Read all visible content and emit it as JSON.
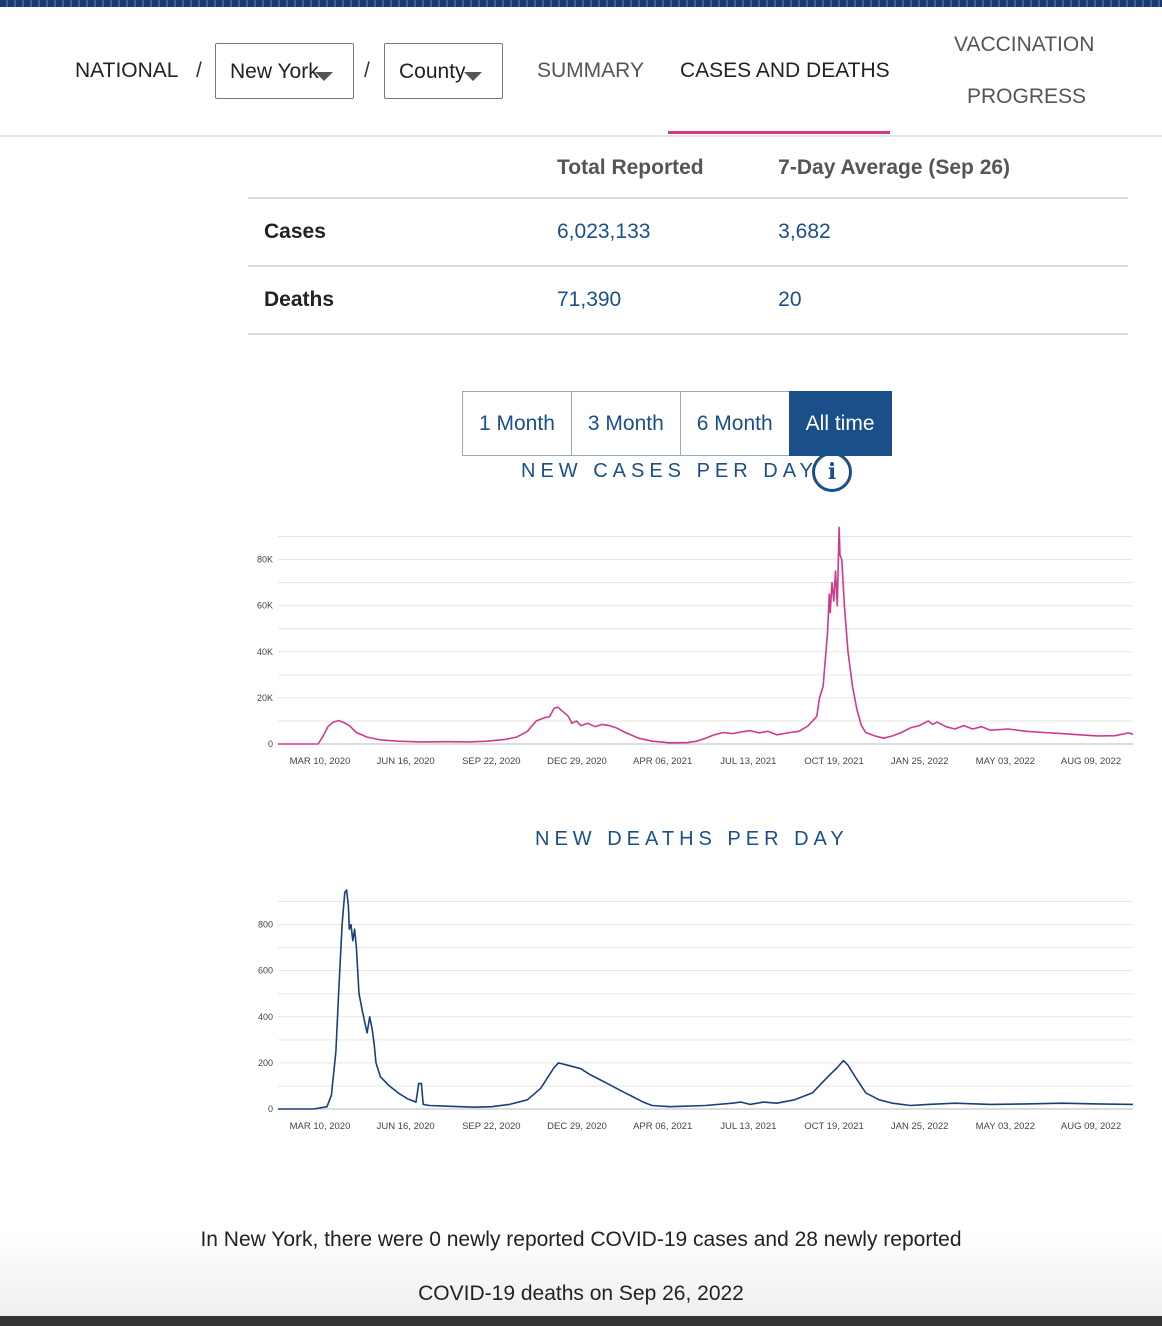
{
  "nav": {
    "national": "NATIONAL",
    "separator": "/",
    "state_select": "New York",
    "county_select": "County",
    "links": [
      "SUMMARY",
      "CASES AND DEATHS",
      "VACCINATION",
      "PROGRESS"
    ]
  },
  "summary": {
    "headers": [
      "Total Reported",
      "7-Day Average (Sep 26)"
    ],
    "rows": [
      {
        "label": "Cases",
        "total": "6,023,133",
        "avg": "3,682"
      },
      {
        "label": "Deaths",
        "total": "71,390",
        "avg": "20"
      }
    ]
  },
  "range_buttons": [
    "1 Month",
    "3 Month",
    "6 Month",
    "All time"
  ],
  "charts": {
    "cases_title": "NEW CASES PER DAY",
    "deaths_title": "NEW DEATHS PER DAY",
    "info_glyph": "i"
  },
  "footnote": {
    "line1": "In New York, there were 0 newly reported COVID-19 cases and 28 newly reported",
    "line2": "COVID-19 deaths on Sep 26, 2022"
  },
  "colors": {
    "cases": "#cf3a8c",
    "deaths": "#1b3f7a",
    "accent": "#1b4f8a"
  },
  "chart_data": [
    {
      "type": "line",
      "title": "NEW CASES PER DAY",
      "xlabel": "",
      "ylabel": "",
      "x_ticks": [
        "MAR 10, 2020",
        "JUN 16, 2020",
        "SEP 22, 2020",
        "DEC 29, 2020",
        "APR 06, 2021",
        "JUL 13, 2021",
        "OCT 19, 2021",
        "JAN 25, 2022",
        "MAY 03, 2022",
        "AUG 09, 2022"
      ],
      "y_ticks": [
        "0",
        "20K",
        "40K",
        "60K",
        "80K"
      ],
      "ylim": [
        0,
        95000
      ],
      "xlim_days": [
        0,
        960
      ],
      "series": [
        {
          "name": "New cases",
          "points": [
            [
              0,
              0
            ],
            [
              20,
              0
            ],
            [
              45,
              0
            ],
            [
              50,
              3000
            ],
            [
              56,
              7500
            ],
            [
              62,
              9500
            ],
            [
              68,
              10200
            ],
            [
              74,
              9300
            ],
            [
              80,
              8000
            ],
            [
              88,
              5000
            ],
            [
              100,
              3000
            ],
            [
              115,
              1800
            ],
            [
              135,
              1200
            ],
            [
              160,
              900
            ],
            [
              190,
              1000
            ],
            [
              215,
              900
            ],
            [
              235,
              1200
            ],
            [
              255,
              2000
            ],
            [
              268,
              3000
            ],
            [
              280,
              5500
            ],
            [
              290,
              10000
            ],
            [
              300,
              11500
            ],
            [
              305,
              11800
            ],
            [
              310,
              15500
            ],
            [
              314,
              16000
            ],
            [
              320,
              14000
            ],
            [
              326,
              12000
            ],
            [
              330,
              9000
            ],
            [
              335,
              10000
            ],
            [
              340,
              8000
            ],
            [
              348,
              9000
            ],
            [
              356,
              7500
            ],
            [
              364,
              8500
            ],
            [
              372,
              8000
            ],
            [
              380,
              7000
            ],
            [
              390,
              5000
            ],
            [
              405,
              2500
            ],
            [
              420,
              1200
            ],
            [
              440,
              500
            ],
            [
              460,
              600
            ],
            [
              470,
              1200
            ],
            [
              480,
              2500
            ],
            [
              490,
              4000
            ],
            [
              500,
              5000
            ],
            [
              510,
              4500
            ],
            [
              520,
              5200
            ],
            [
              530,
              5800
            ],
            [
              540,
              4800
            ],
            [
              550,
              5500
            ],
            [
              560,
              4000
            ],
            [
              575,
              5000
            ],
            [
              585,
              5500
            ],
            [
              595,
              7800
            ],
            [
              605,
              12000
            ],
            [
              608,
              20000
            ],
            [
              612,
              25000
            ],
            [
              614,
              34000
            ],
            [
              617,
              48000
            ],
            [
              619,
              65000
            ],
            [
              620,
              57000
            ],
            [
              622,
              70000
            ],
            [
              624,
              62000
            ],
            [
              626,
              75000
            ],
            [
              628,
              60000
            ],
            [
              630,
              94000
            ],
            [
              631,
              82000
            ],
            [
              633,
              80000
            ],
            [
              636,
              60000
            ],
            [
              640,
              40000
            ],
            [
              645,
              25000
            ],
            [
              650,
              15000
            ],
            [
              655,
              8000
            ],
            [
              660,
              5000
            ],
            [
              670,
              3500
            ],
            [
              680,
              2500
            ],
            [
              690,
              3500
            ],
            [
              700,
              5000
            ],
            [
              710,
              7000
            ],
            [
              720,
              8000
            ],
            [
              730,
              10000
            ],
            [
              735,
              8500
            ],
            [
              740,
              9500
            ],
            [
              750,
              7500
            ],
            [
              760,
              6500
            ],
            [
              770,
              8000
            ],
            [
              780,
              6500
            ],
            [
              790,
              7500
            ],
            [
              800,
              6000
            ],
            [
              820,
              6500
            ],
            [
              840,
              5500
            ],
            [
              860,
              5000
            ],
            [
              880,
              4500
            ],
            [
              900,
              4000
            ],
            [
              920,
              3500
            ],
            [
              940,
              3600
            ],
            [
              955,
              4800
            ],
            [
              960,
              4200
            ]
          ]
        }
      ]
    },
    {
      "type": "line",
      "title": "NEW DEATHS PER DAY",
      "xlabel": "",
      "ylabel": "",
      "x_ticks": [
        "MAR 10, 2020",
        "JUN 16, 2020",
        "SEP 22, 2020",
        "DEC 29, 2020",
        "APR 06, 2021",
        "JUL 13, 2021",
        "OCT 19, 2021",
        "JAN 25, 2022",
        "MAY 03, 2022",
        "AUG 09, 2022"
      ],
      "y_ticks": [
        "0",
        "200",
        "400",
        "600",
        "800"
      ],
      "ylim": [
        0,
        950
      ],
      "xlim_days": [
        0,
        960
      ],
      "series": [
        {
          "name": "New deaths",
          "points": [
            [
              0,
              0
            ],
            [
              40,
              0
            ],
            [
              55,
              10
            ],
            [
              60,
              60
            ],
            [
              65,
              250
            ],
            [
              68,
              500
            ],
            [
              72,
              800
            ],
            [
              75,
              940
            ],
            [
              77,
              950
            ],
            [
              79,
              880
            ],
            [
              80,
              780
            ],
            [
              82,
              800
            ],
            [
              84,
              730
            ],
            [
              86,
              780
            ],
            [
              88,
              700
            ],
            [
              91,
              500
            ],
            [
              95,
              420
            ],
            [
              100,
              330
            ],
            [
              103,
              400
            ],
            [
              106,
              340
            ],
            [
              108,
              280
            ],
            [
              110,
              200
            ],
            [
              115,
              140
            ],
            [
              125,
              100
            ],
            [
              135,
              70
            ],
            [
              145,
              45
            ],
            [
              155,
              30
            ],
            [
              158,
              110
            ],
            [
              161,
              110
            ],
            [
              163,
              20
            ],
            [
              170,
              15
            ],
            [
              190,
              12
            ],
            [
              220,
              8
            ],
            [
              240,
              10
            ],
            [
              260,
              20
            ],
            [
              280,
              40
            ],
            [
              295,
              90
            ],
            [
              305,
              150
            ],
            [
              310,
              180
            ],
            [
              315,
              200
            ],
            [
              325,
              190
            ],
            [
              340,
              175
            ],
            [
              350,
              150
            ],
            [
              360,
              130
            ],
            [
              370,
              110
            ],
            [
              380,
              90
            ],
            [
              390,
              70
            ],
            [
              400,
              50
            ],
            [
              410,
              30
            ],
            [
              420,
              15
            ],
            [
              440,
              10
            ],
            [
              480,
              15
            ],
            [
              510,
              25
            ],
            [
              520,
              30
            ],
            [
              530,
              20
            ],
            [
              545,
              30
            ],
            [
              560,
              25
            ],
            [
              580,
              40
            ],
            [
              600,
              70
            ],
            [
              610,
              110
            ],
            [
              620,
              150
            ],
            [
              628,
              180
            ],
            [
              635,
              210
            ],
            [
              640,
              190
            ],
            [
              648,
              140
            ],
            [
              660,
              70
            ],
            [
              675,
              40
            ],
            [
              690,
              25
            ],
            [
              710,
              15
            ],
            [
              730,
              20
            ],
            [
              760,
              25
            ],
            [
              800,
              20
            ],
            [
              840,
              22
            ],
            [
              880,
              25
            ],
            [
              920,
              22
            ],
            [
              960,
              20
            ]
          ]
        }
      ]
    }
  ]
}
